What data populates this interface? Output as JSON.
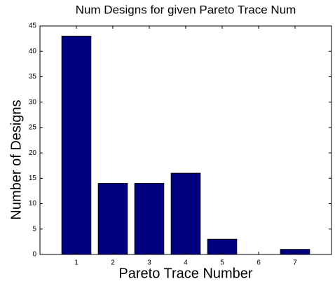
{
  "chart_data": {
    "type": "bar",
    "title": "Num Designs for given Pareto Trace Num",
    "xlabel": "Pareto Trace Number",
    "ylabel": "Number of Designs",
    "x": [
      1,
      2,
      3,
      4,
      5,
      6,
      7
    ],
    "values": [
      43,
      14,
      14,
      16,
      3,
      0,
      1
    ],
    "color": "#000080",
    "xlim": [
      0,
      8
    ],
    "xticks": [
      1,
      2,
      3,
      4,
      5,
      6,
      7
    ],
    "ylim": [
      0,
      45
    ],
    "yticks": [
      0,
      5,
      10,
      15,
      20,
      25,
      30,
      35,
      40,
      45
    ],
    "grid": false
  }
}
